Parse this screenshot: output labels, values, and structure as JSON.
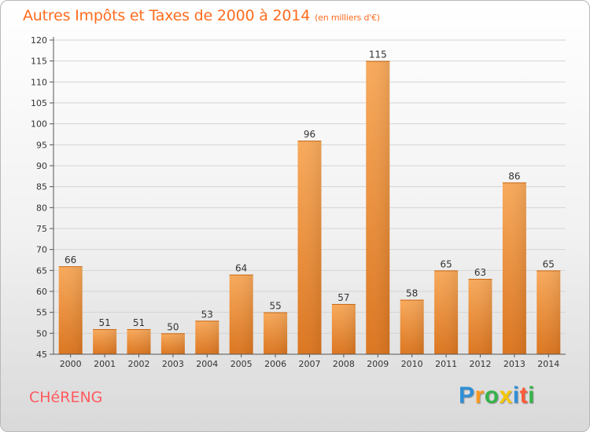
{
  "title": "Autres Impôts et Taxes de 2000 à 2014",
  "unit": "(en milliers d'€)",
  "commune": "CHéRENG",
  "brand": {
    "letters": [
      "P",
      "r",
      "o",
      "x",
      "i",
      "t",
      "i"
    ],
    "colors": [
      "#2f8fd8",
      "#ff9a1f",
      "#35b34a",
      "#f7c600",
      "#2f8fd8",
      "#ff5a3a",
      "#35b34a"
    ]
  },
  "colors": {
    "title": "#ff6c1f",
    "bar_light": "#f7a85a",
    "bar_dark": "#e07a22",
    "grid": "#d4d4d4",
    "axis": "#555555"
  },
  "chart_data": {
    "type": "bar",
    "categories": [
      "2000",
      "2001",
      "2002",
      "2003",
      "2004",
      "2005",
      "2006",
      "2007",
      "2008",
      "2009",
      "2010",
      "2011",
      "2012",
      "2013",
      "2014"
    ],
    "values": [
      66,
      51,
      51,
      50,
      53,
      64,
      55,
      96,
      57,
      115,
      58,
      65,
      63,
      86,
      65
    ],
    "ylim": [
      45,
      120
    ],
    "yticks": [
      45,
      50,
      55,
      60,
      65,
      70,
      75,
      80,
      85,
      90,
      95,
      100,
      105,
      110,
      115,
      120
    ],
    "title": "Autres Impôts et Taxes de 2000 à 2014",
    "ylabel": "",
    "xlabel": "",
    "grid": true
  }
}
